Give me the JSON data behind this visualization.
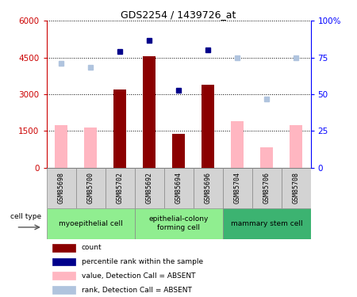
{
  "title": "GDS2254 / 1439726_at",
  "samples": [
    "GSM85698",
    "GSM85700",
    "GSM85702",
    "GSM85692",
    "GSM85694",
    "GSM85696",
    "GSM85704",
    "GSM85706",
    "GSM85708"
  ],
  "count_values": [
    null,
    null,
    3200,
    4550,
    1400,
    3380,
    null,
    null,
    null
  ],
  "rank_values": [
    null,
    null,
    4750,
    5200,
    3150,
    4800,
    null,
    null,
    null
  ],
  "absent_count_values": [
    1750,
    1650,
    null,
    null,
    null,
    null,
    1900,
    850,
    1750
  ],
  "absent_rank_values": [
    4250,
    4100,
    null,
    null,
    null,
    null,
    4500,
    2800,
    4500
  ],
  "ylim_left": [
    0,
    6000
  ],
  "ylim_right": [
    0,
    100
  ],
  "left_ticks": [
    0,
    1500,
    3000,
    4500,
    6000
  ],
  "right_ticks": [
    0,
    25,
    50,
    75,
    100
  ],
  "right_tick_labels": [
    "0",
    "25",
    "50",
    "75",
    "100%"
  ],
  "bar_color_present": "#8B0000",
  "bar_color_absent": "#FFB6C1",
  "dot_color_present": "#00008B",
  "dot_color_absent": "#B0C4DE",
  "sample_bg_color": "#D3D3D3",
  "cell_type_groups": [
    {
      "label": "myoepithelial cell",
      "start": 0,
      "end": 2,
      "color": "#90EE90"
    },
    {
      "label": "epithelial-colony\nforming cell",
      "start": 3,
      "end": 5,
      "color": "#90EE90"
    },
    {
      "label": "mammary stem cell",
      "start": 6,
      "end": 8,
      "color": "#3CB371"
    }
  ],
  "legend_items": [
    {
      "label": "count",
      "color": "#8B0000"
    },
    {
      "label": "percentile rank within the sample",
      "color": "#00008B"
    },
    {
      "label": "value, Detection Call = ABSENT",
      "color": "#FFB6C1"
    },
    {
      "label": "rank, Detection Call = ABSENT",
      "color": "#B0C4DE"
    }
  ]
}
